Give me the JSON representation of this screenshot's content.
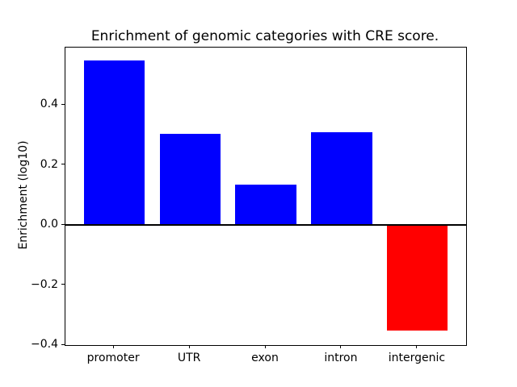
{
  "chart_data": {
    "type": "bar",
    "title": "Enrichment of genomic categories with CRE score.",
    "ylabel": "Enrichment (log10)",
    "xlabel": "",
    "categories": [
      "promoter",
      "UTR",
      "exon",
      "intron",
      "intergenic"
    ],
    "values": [
      0.547,
      0.303,
      0.134,
      0.308,
      -0.352
    ],
    "bar_colors": [
      "#0000ff",
      "#0000ff",
      "#0000ff",
      "#0000ff",
      "#ff0000"
    ],
    "positive_color": "#0000ff",
    "negative_color": "#ff0000",
    "axis_color": "#000000",
    "background_color": "#ffffff",
    "ylim": [
      -0.4,
      0.591
    ],
    "xlim": [
      -0.64,
      4.64
    ],
    "bar_width": 0.8,
    "ytick_values": [
      0.4,
      0.2,
      0.0,
      -0.2,
      -0.4
    ],
    "ytick_labels": [
      "0.4",
      "0.2",
      "0.0",
      "−0.2",
      "−0.4"
    ],
    "grid": false,
    "legend": null,
    "zero_line": true
  }
}
